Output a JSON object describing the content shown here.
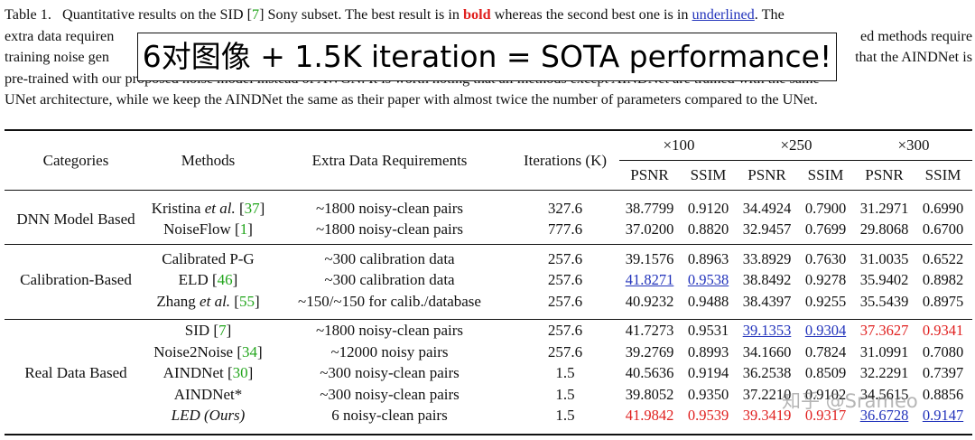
{
  "caption": {
    "table_label": "Table 1.",
    "lead": "Quantitative results on the SID [",
    "ref_sid": "7",
    "after_ref": "] Sony subset. The best result is in ",
    "bold_word": "bold",
    "middle": " whereas the second best one is in ",
    "underlined_word": "underlined",
    "after_underlined": ". The",
    "line2_left": "extra data requiren",
    "line2_right": "ed methods require",
    "line3_left": "training noise gen",
    "line3_right": "that the AINDNet is",
    "line4": "pre-trained with our proposed noise model instead of AWGN. It is worth noting that all methods except AINDNet are trained with the same",
    "line5": "UNet architecture, while we keep the AINDNet the same as their paper with almost twice the number of parameters compared to the UNet."
  },
  "overlay": {
    "text": "6对图像 + 1.5K iteration = SOTA performance!"
  },
  "table": {
    "headers": {
      "categories": "Categories",
      "methods": "Methods",
      "extra": "Extra Data Requirements",
      "iterations": "Iterations (K)",
      "ratios": [
        "×100",
        "×250",
        "×300"
      ],
      "metrics": [
        "PSNR",
        "SSIM",
        "PSNR",
        "SSIM",
        "PSNR",
        "SSIM"
      ]
    },
    "groups": [
      {
        "category": "DNN Model Based",
        "rows": [
          {
            "method": "Kristina",
            "method_it": "et al.",
            "ref": "37",
            "extra": "~1800 noisy-clean pairs",
            "iter": "327.6",
            "values": [
              "38.7799",
              "0.9120",
              "34.4924",
              "0.7900",
              "31.2971",
              "0.6990"
            ]
          },
          {
            "method": "NoiseFlow",
            "ref": "1",
            "extra": "~1800 noisy-clean pairs",
            "iter": "777.6",
            "values": [
              "37.0200",
              "0.8820",
              "32.9457",
              "0.7699",
              "29.8068",
              "0.6700"
            ]
          }
        ]
      },
      {
        "category": "Calibration-Based",
        "rows": [
          {
            "method": "Calibrated P-G",
            "extra": "~300 calibration data",
            "iter": "257.6",
            "values": [
              "39.1576",
              "0.8963",
              "33.8929",
              "0.7630",
              "31.0035",
              "0.6522"
            ]
          },
          {
            "method": "ELD",
            "ref": "46",
            "extra": "~300 calibration data",
            "iter": "257.6",
            "values": [
              "41.8271",
              "0.9538",
              "38.8492",
              "0.9278",
              "35.9402",
              "0.8982"
            ]
          },
          {
            "method": "Zhang",
            "method_it": "et al.",
            "ref": "55",
            "extra": "~150/~150 for calib./database",
            "iter": "257.6",
            "values": [
              "40.9232",
              "0.9488",
              "38.4397",
              "0.9255",
              "35.5439",
              "0.8975"
            ]
          }
        ]
      },
      {
        "category": "Real Data Based",
        "rows": [
          {
            "method": "SID",
            "ref": "7",
            "extra": "~1800 noisy-clean pairs",
            "iter": "257.6",
            "values": [
              "41.7273",
              "0.9531",
              "39.1353",
              "0.9304",
              "37.3627",
              "0.9341"
            ]
          },
          {
            "method": "Noise2Noise",
            "ref": "34",
            "extra": "~12000 noisy pairs",
            "iter": "257.6",
            "values": [
              "39.2769",
              "0.8993",
              "34.1660",
              "0.7824",
              "31.0991",
              "0.7080"
            ]
          },
          {
            "method": "AINDNet",
            "ref": "30",
            "extra": "~300 noisy-clean pairs",
            "iter": "1.5",
            "values": [
              "40.5636",
              "0.9194",
              "36.2538",
              "0.8509",
              "32.2291",
              "0.7397"
            ]
          },
          {
            "method": "AINDNet*",
            "extra": "~300 noisy-clean pairs",
            "iter": "1.5",
            "values": [
              "39.8052",
              "0.9350",
              "37.2210",
              "0.9102",
              "34.5615",
              "0.8856"
            ]
          },
          {
            "method": "LED (Ours)",
            "extra": "6 noisy-clean pairs",
            "iter": "1.5",
            "values": [
              "41.9842",
              "0.9539",
              "39.3419",
              "0.9317",
              "36.6728",
              "0.9147"
            ]
          }
        ]
      }
    ]
  },
  "watermark": "知乎 @Srameo",
  "colors": {
    "best": "#e0201f",
    "second": "#2233bb",
    "ref": "#22a51c"
  }
}
